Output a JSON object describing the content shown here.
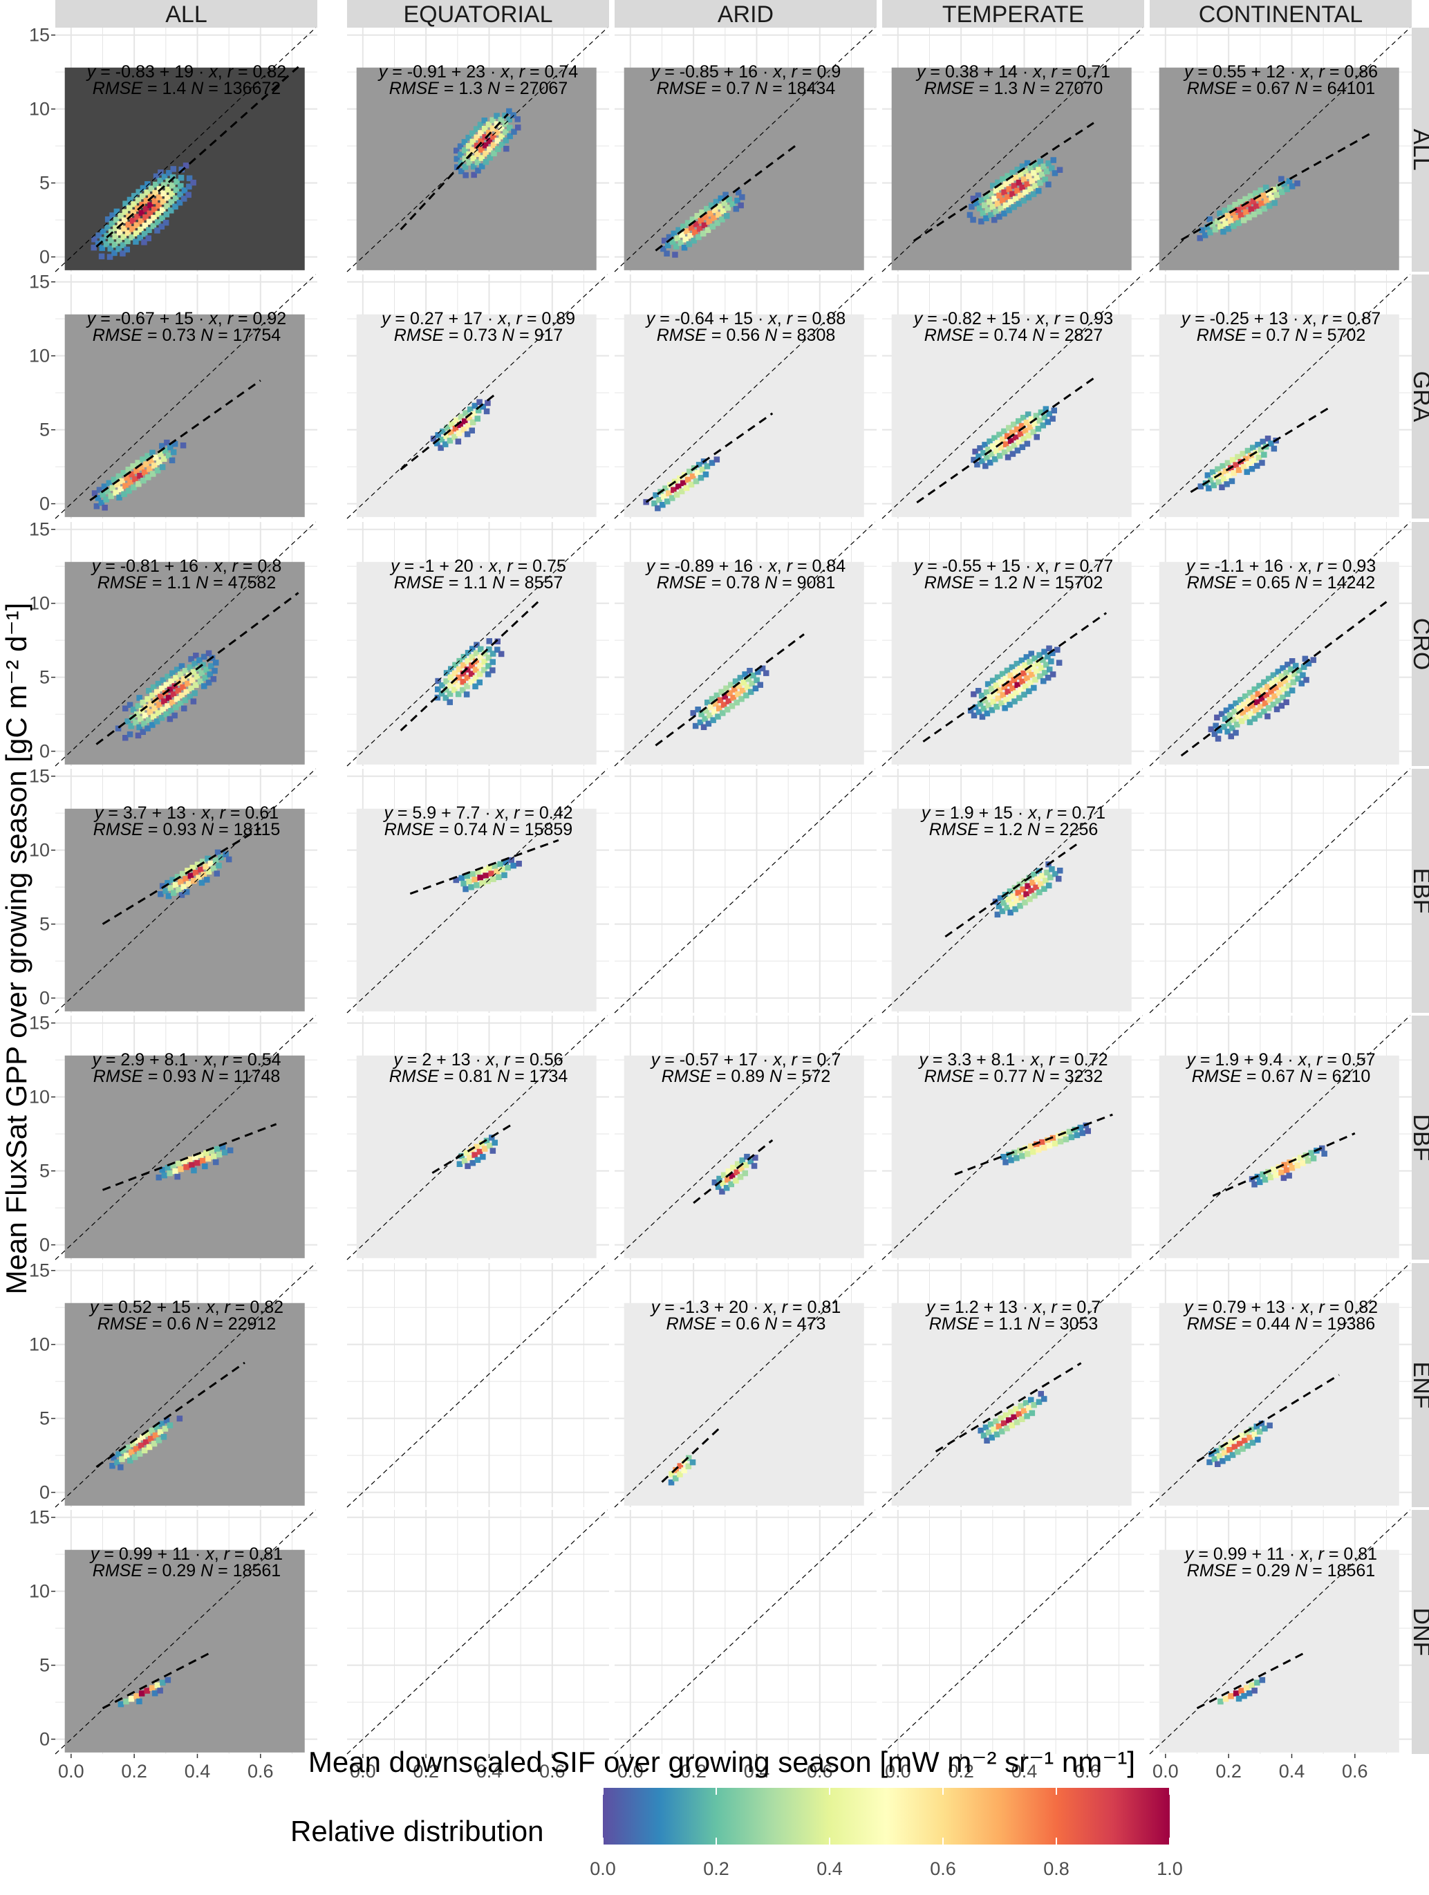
{
  "chart_data": {
    "type": "heatmap",
    "xlabel": "Mean downscaled SIF over growing season [mW m⁻² sr⁻¹ nm⁻¹]",
    "ylabel": "Mean FluxSat GPP over growing season [gC m⁻² d⁻¹]",
    "xlim": [
      -0.05,
      0.78
    ],
    "ylim": [
      -1,
      15.5
    ],
    "x_ticks": [
      "0.0",
      "0.2",
      "0.4",
      "0.6"
    ],
    "x_tick_values": [
      0,
      0.2,
      0.4,
      0.6
    ],
    "y_ticks": [
      "0",
      "5",
      "10",
      "15"
    ],
    "y_tick_values": [
      0,
      5,
      10,
      15
    ],
    "columns": [
      "ALL",
      "EQUATORIAL",
      "ARID",
      "TEMPERATE",
      "CONTINENTAL"
    ],
    "rows": [
      "ALL",
      "GRA",
      "CRO",
      "EBF",
      "DBF",
      "ENF",
      "DNF"
    ],
    "grid": true,
    "reference_line": "1:1 dashed",
    "legend": {
      "title": "Relative distribution",
      "ticks": [
        "0.0",
        "0.2",
        "0.4",
        "0.6",
        "0.8",
        "1.0"
      ],
      "range": [
        0,
        1
      ],
      "position": "bottom",
      "colors": [
        "#5e4fa2",
        "#3288bd",
        "#66c2a5",
        "#abdda4",
        "#e6f598",
        "#ffffbf",
        "#fee08b",
        "#fdae61",
        "#f46d43",
        "#d53e4f",
        "#9e0142"
      ]
    },
    "panels": [
      {
        "col": "ALL",
        "row": "ALL",
        "intercept": "-0.83",
        "slope": "19",
        "r": "0.82",
        "rmse": "1.4",
        "n": "136672",
        "bg": "#474747",
        "fit_x": [
          0.08,
          0.72
        ],
        "cx": 0.22,
        "cy": 3.2,
        "sx": 0.15,
        "sy": 3.0
      },
      {
        "col": "EQUATORIAL",
        "row": "ALL",
        "intercept": "-0.91",
        "slope": "23",
        "r": "0.74",
        "rmse": "1.3",
        "n": "27067",
        "bg": "#999999",
        "fit_x": [
          0.12,
          0.46
        ],
        "cx": 0.38,
        "cy": 8.0,
        "sx": 0.1,
        "sy": 2.6
      },
      {
        "col": "ARID",
        "row": "ALL",
        "intercept": "-0.85",
        "slope": "16",
        "r": "0.9",
        "rmse": "0.7",
        "n": "18434",
        "bg": "#999999",
        "fit_x": [
          0.08,
          0.53
        ],
        "cx": 0.22,
        "cy": 2.5,
        "sx": 0.12,
        "sy": 1.8
      },
      {
        "col": "TEMPERATE",
        "row": "ALL",
        "intercept": "0.38",
        "slope": "14",
        "r": "0.71",
        "rmse": "1.3",
        "n": "27070",
        "bg": "#999999",
        "fit_x": [
          0.05,
          0.62
        ],
        "cx": 0.36,
        "cy": 4.8,
        "sx": 0.13,
        "sy": 2.5
      },
      {
        "col": "CONTINENTAL",
        "row": "ALL",
        "intercept": "0.55",
        "slope": "12",
        "r": "0.86",
        "rmse": "0.67",
        "n": "64101",
        "bg": "#999999",
        "fit_x": [
          0.05,
          0.66
        ],
        "cx": 0.25,
        "cy": 3.5,
        "sx": 0.14,
        "sy": 1.8
      },
      {
        "col": "ALL",
        "row": "GRA",
        "intercept": "-0.67",
        "slope": "15",
        "r": "0.92",
        "rmse": "0.73",
        "n": "17754",
        "bg": "#999999",
        "fit_x": [
          0.06,
          0.6
        ],
        "cx": 0.2,
        "cy": 2.2,
        "sx": 0.13,
        "sy": 1.8
      },
      {
        "col": "EQUATORIAL",
        "row": "GRA",
        "intercept": "0.27",
        "slope": "17",
        "r": "0.89",
        "rmse": "0.73",
        "n": "917",
        "bg": "#ebebeb",
        "fit_x": [
          0.12,
          0.42
        ],
        "cx": 0.3,
        "cy": 5.5,
        "sx": 0.08,
        "sy": 1.5
      },
      {
        "col": "ARID",
        "row": "GRA",
        "intercept": "-0.64",
        "slope": "15",
        "r": "0.88",
        "rmse": "0.56",
        "n": "8308",
        "bg": "#ebebeb",
        "fit_x": [
          0.05,
          0.45
        ],
        "cx": 0.15,
        "cy": 1.5,
        "sx": 0.1,
        "sy": 1.4
      },
      {
        "col": "TEMPERATE",
        "row": "GRA",
        "intercept": "-0.82",
        "slope": "15",
        "r": "0.93",
        "rmse": "0.74",
        "n": "2827",
        "bg": "#ebebeb",
        "fit_x": [
          0.06,
          0.62
        ],
        "cx": 0.36,
        "cy": 4.8,
        "sx": 0.12,
        "sy": 1.9
      },
      {
        "col": "CONTINENTAL",
        "row": "GRA",
        "intercept": "-0.25",
        "slope": "13",
        "r": "0.87",
        "rmse": "0.7",
        "n": "5702",
        "bg": "#ebebeb",
        "fit_x": [
          0.08,
          0.52
        ],
        "cx": 0.22,
        "cy": 2.8,
        "sx": 0.11,
        "sy": 1.6
      },
      {
        "col": "ALL",
        "row": "CRO",
        "intercept": "-0.81",
        "slope": "16",
        "r": "0.8",
        "rmse": "1.1",
        "n": "47582",
        "bg": "#999999",
        "fit_x": [
          0.08,
          0.72
        ],
        "cx": 0.3,
        "cy": 4.0,
        "sx": 0.15,
        "sy": 2.6
      },
      {
        "col": "EQUATORIAL",
        "row": "CRO",
        "intercept": "-1",
        "slope": "20",
        "r": "0.75",
        "rmse": "1.1",
        "n": "8557",
        "bg": "#ebebeb",
        "fit_x": [
          0.12,
          0.56
        ],
        "cx": 0.32,
        "cy": 5.5,
        "sx": 0.1,
        "sy": 2.4
      },
      {
        "col": "ARID",
        "row": "CRO",
        "intercept": "-0.89",
        "slope": "16",
        "r": "0.84",
        "rmse": "0.78",
        "n": "9081",
        "bg": "#ebebeb",
        "fit_x": [
          0.08,
          0.55
        ],
        "cx": 0.3,
        "cy": 3.8,
        "sx": 0.11,
        "sy": 1.8
      },
      {
        "col": "TEMPERATE",
        "row": "CRO",
        "intercept": "-0.55",
        "slope": "15",
        "r": "0.77",
        "rmse": "1.2",
        "n": "15702",
        "bg": "#ebebeb",
        "fit_x": [
          0.08,
          0.66
        ],
        "cx": 0.36,
        "cy": 4.8,
        "sx": 0.13,
        "sy": 2.5
      },
      {
        "col": "CONTINENTAL",
        "row": "CRO",
        "intercept": "-1.1",
        "slope": "16",
        "r": "0.93",
        "rmse": "0.65",
        "n": "14242",
        "bg": "#ebebeb",
        "fit_x": [
          0.05,
          0.7
        ],
        "cx": 0.3,
        "cy": 3.8,
        "sx": 0.15,
        "sy": 2.2
      },
      {
        "col": "ALL",
        "row": "EBF",
        "intercept": "3.7",
        "slope": "13",
        "r": "0.61",
        "rmse": "0.93",
        "n": "18115",
        "bg": "#999999",
        "fit_x": [
          0.1,
          0.6
        ],
        "cx": 0.38,
        "cy": 8.5,
        "sx": 0.1,
        "sy": 1.6
      },
      {
        "col": "EQUATORIAL",
        "row": "EBF",
        "intercept": "5.9",
        "slope": "7.7",
        "r": "0.42",
        "rmse": "0.74",
        "n": "15859",
        "bg": "#ebebeb",
        "fit_x": [
          0.15,
          0.62
        ],
        "cx": 0.38,
        "cy": 8.5,
        "sx": 0.08,
        "sy": 1.4
      },
      {
        "col": "TEMPERATE",
        "row": "EBF",
        "intercept": "1.9",
        "slope": "15",
        "r": "0.71",
        "rmse": "1.2",
        "n": "2256",
        "bg": "#ebebeb",
        "fit_x": [
          0.15,
          0.58
        ],
        "cx": 0.4,
        "cy": 7.5,
        "sx": 0.1,
        "sy": 1.8
      },
      {
        "col": "ALL",
        "row": "DBF",
        "intercept": "2.9",
        "slope": "8.1",
        "r": "0.54",
        "rmse": "0.93",
        "n": "11748",
        "bg": "#999999",
        "fit_x": [
          0.1,
          0.65
        ],
        "cx": 0.38,
        "cy": 5.8,
        "sx": 0.1,
        "sy": 1.2
      },
      {
        "col": "EQUATORIAL",
        "row": "DBF",
        "intercept": "2",
        "slope": "13",
        "r": "0.56",
        "rmse": "0.81",
        "n": "1734",
        "bg": "#ebebeb",
        "fit_x": [
          0.22,
          0.48
        ],
        "cx": 0.35,
        "cy": 6.5,
        "sx": 0.06,
        "sy": 1.2
      },
      {
        "col": "ARID",
        "row": "DBF",
        "intercept": "-0.57",
        "slope": "17",
        "r": "0.7",
        "rmse": "0.89",
        "n": "572",
        "bg": "#ebebeb",
        "fit_x": [
          0.2,
          0.45
        ],
        "cx": 0.32,
        "cy": 5.0,
        "sx": 0.06,
        "sy": 1.4
      },
      {
        "col": "TEMPERATE",
        "row": "DBF",
        "intercept": "3.3",
        "slope": "8.1",
        "r": "0.72",
        "rmse": "0.77",
        "n": "3232",
        "bg": "#ebebeb",
        "fit_x": [
          0.18,
          0.68
        ],
        "cx": 0.45,
        "cy": 7.0,
        "sx": 0.12,
        "sy": 1.0
      },
      {
        "col": "CONTINENTAL",
        "row": "DBF",
        "intercept": "1.9",
        "slope": "9.4",
        "r": "0.57",
        "rmse": "0.67",
        "n": "6210",
        "bg": "#ebebeb",
        "fit_x": [
          0.15,
          0.6
        ],
        "cx": 0.38,
        "cy": 5.5,
        "sx": 0.1,
        "sy": 1.1
      },
      {
        "col": "ALL",
        "row": "ENF",
        "intercept": "0.52",
        "slope": "15",
        "r": "0.82",
        "rmse": "0.6",
        "n": "22912",
        "bg": "#999999",
        "fit_x": [
          0.08,
          0.55
        ],
        "cx": 0.22,
        "cy": 3.5,
        "sx": 0.1,
        "sy": 1.4
      },
      {
        "col": "ARID",
        "row": "ENF",
        "intercept": "-1.3",
        "slope": "20",
        "r": "0.81",
        "rmse": "0.6",
        "n": "473",
        "bg": "#ebebeb",
        "fit_x": [
          0.1,
          0.28
        ],
        "cx": 0.15,
        "cy": 1.8,
        "sx": 0.05,
        "sy": 1.0
      },
      {
        "col": "TEMPERATE",
        "row": "ENF",
        "intercept": "1.2",
        "slope": "13",
        "r": "0.7",
        "rmse": "1.1",
        "n": "3053",
        "bg": "#ebebeb",
        "fit_x": [
          0.12,
          0.58
        ],
        "cx": 0.35,
        "cy": 5.2,
        "sx": 0.1,
        "sy": 1.4
      },
      {
        "col": "CONTINENTAL",
        "row": "ENF",
        "intercept": "0.79",
        "slope": "13",
        "r": "0.82",
        "rmse": "0.44",
        "n": "19386",
        "bg": "#ebebeb",
        "fit_x": [
          0.1,
          0.55
        ],
        "cx": 0.22,
        "cy": 3.5,
        "sx": 0.09,
        "sy": 1.3
      },
      {
        "col": "ALL",
        "row": "DNF",
        "intercept": "0.99",
        "slope": "11",
        "r": "0.81",
        "rmse": "0.29",
        "n": "18561",
        "bg": "#999999",
        "fit_x": [
          0.1,
          0.45
        ],
        "cx": 0.22,
        "cy": 3.3,
        "sx": 0.07,
        "sy": 0.8
      },
      {
        "col": "CONTINENTAL",
        "row": "DNF",
        "intercept": "0.99",
        "slope": "11",
        "r": "0.81",
        "rmse": "0.29",
        "n": "18561",
        "bg": "#ebebeb",
        "fit_x": [
          0.1,
          0.45
        ],
        "cx": 0.22,
        "cy": 3.3,
        "sx": 0.07,
        "sy": 0.8
      }
    ]
  }
}
